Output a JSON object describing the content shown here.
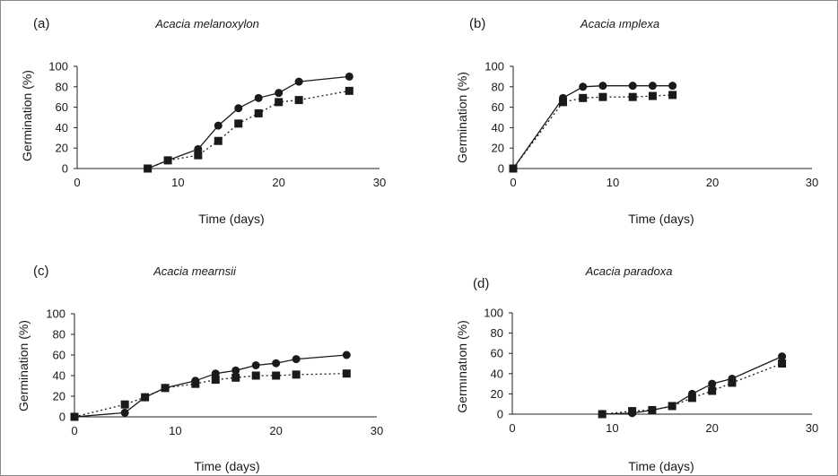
{
  "chart_data": [
    {
      "type": "line",
      "panel_label": "(a)",
      "title": "Acacia melanoxylon",
      "xlabel": "Time (days)",
      "ylabel": "Germination (%)",
      "xlim": [
        0,
        30
      ],
      "ylim": [
        0,
        100
      ],
      "xticks": [
        "0",
        "10",
        "20",
        "30"
      ],
      "yticks": [
        "0",
        "20",
        "40",
        "60",
        "80",
        "100"
      ],
      "grid": false,
      "series": [
        {
          "marker": "circle",
          "line": "solid",
          "x": [
            7,
            9,
            12,
            14,
            16,
            18,
            20,
            22,
            27
          ],
          "y": [
            0,
            8,
            19,
            42,
            59,
            69,
            74,
            85,
            90
          ]
        },
        {
          "marker": "square",
          "line": "dotted",
          "x": [
            7,
            9,
            12,
            14,
            16,
            18,
            20,
            22,
            27
          ],
          "y": [
            0,
            8,
            13,
            27,
            44,
            54,
            65,
            67,
            76
          ]
        }
      ]
    },
    {
      "type": "line",
      "panel_label": "(b)",
      "title": "Acacia ımplexa",
      "xlabel": "Time (days)",
      "ylabel": "Germination (%)",
      "xlim": [
        0,
        30
      ],
      "ylim": [
        0,
        100
      ],
      "xticks": [
        "0",
        "10",
        "20",
        "30"
      ],
      "yticks": [
        "0",
        "20",
        "40",
        "60",
        "80",
        "100"
      ],
      "grid": false,
      "series": [
        {
          "marker": "circle",
          "line": "solid",
          "x": [
            0,
            5,
            7,
            9,
            12,
            14,
            16
          ],
          "y": [
            0,
            69,
            80,
            81,
            81,
            81,
            81
          ]
        },
        {
          "marker": "square",
          "line": "dotted",
          "x": [
            0,
            5,
            7,
            9,
            12,
            14,
            16
          ],
          "y": [
            0,
            65,
            69,
            70,
            70,
            71,
            72
          ]
        }
      ]
    },
    {
      "type": "line",
      "panel_label": "(c)",
      "title": "Acacia mearnsii",
      "xlabel": "Time (days)",
      "ylabel": "Germination (%)",
      "xlim": [
        0,
        30
      ],
      "ylim": [
        0,
        100
      ],
      "xticks": [
        "0",
        "10",
        "20",
        "30"
      ],
      "yticks": [
        "0",
        "20",
        "40",
        "60",
        "80",
        "100"
      ],
      "grid": false,
      "series": [
        {
          "marker": "circle",
          "line": "solid",
          "x": [
            0,
            5,
            7,
            9,
            12,
            14,
            16,
            18,
            20,
            22,
            27
          ],
          "y": [
            0,
            4,
            19,
            28,
            35,
            42,
            45,
            50,
            52,
            56,
            60
          ]
        },
        {
          "marker": "square",
          "line": "dotted",
          "x": [
            0,
            5,
            7,
            9,
            12,
            14,
            16,
            18,
            20,
            22,
            27
          ],
          "y": [
            0,
            12,
            19,
            28,
            32,
            36,
            38,
            40,
            40,
            41,
            42
          ]
        }
      ]
    },
    {
      "type": "line",
      "panel_label": "(d)",
      "title": "Acacia paradoxa",
      "xlabel": "Time (days)",
      "ylabel": "Germınatıon (%)",
      "xlim": [
        0,
        30
      ],
      "ylim": [
        0,
        100
      ],
      "xticks": [
        "0",
        "10",
        "20",
        "30"
      ],
      "yticks": [
        "0",
        "20",
        "40",
        "60",
        "80",
        "100"
      ],
      "grid": false,
      "series": [
        {
          "marker": "circle",
          "line": "solid",
          "x": [
            9,
            12,
            14,
            16,
            18,
            20,
            22,
            27
          ],
          "y": [
            0,
            1,
            4,
            8,
            20,
            30,
            35,
            57
          ]
        },
        {
          "marker": "square",
          "line": "dotted",
          "x": [
            9,
            12,
            14,
            16,
            18,
            20,
            22,
            27
          ],
          "y": [
            0,
            3,
            4,
            8,
            16,
            23,
            31,
            50
          ]
        }
      ]
    }
  ]
}
